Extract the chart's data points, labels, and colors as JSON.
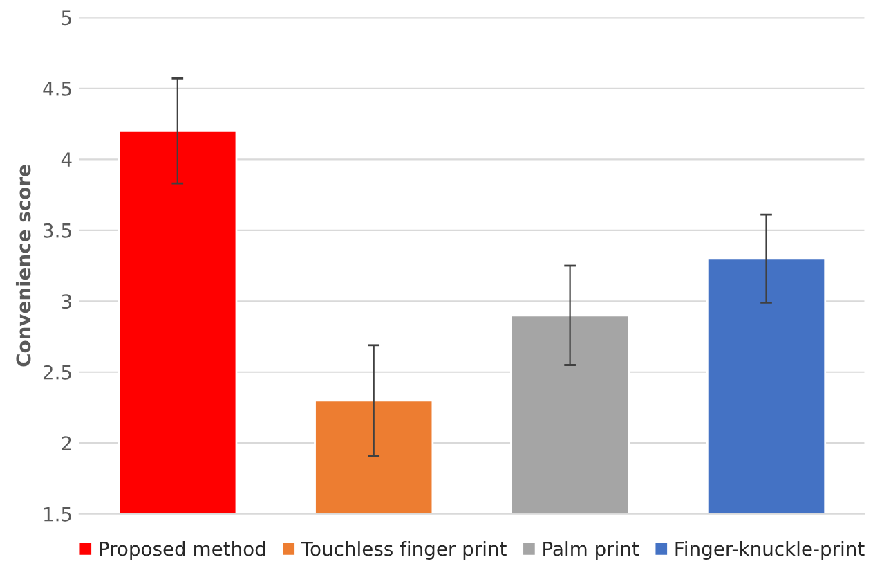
{
  "chart_data": {
    "type": "bar",
    "ylabel": "Convenience score",
    "categories": [
      null,
      null,
      null,
      null
    ],
    "series": [
      {
        "name": "Proposed method",
        "color": "#ff0000",
        "values": [
          4.2,
          null,
          null,
          null
        ],
        "errors": [
          0.37,
          null,
          null,
          null
        ]
      },
      {
        "name": "Touchless finger print",
        "color": "#ed7d31",
        "values": [
          null,
          2.3,
          null,
          null
        ],
        "errors": [
          null,
          0.39,
          null,
          null
        ]
      },
      {
        "name": "Palm print",
        "color": "#a5a5a5",
        "values": [
          null,
          null,
          2.9,
          null
        ],
        "errors": [
          null,
          null,
          0.35,
          null
        ]
      },
      {
        "name": "Finger-knuckle-print",
        "color": "#4472c4",
        "values": [
          null,
          null,
          null,
          3.3
        ],
        "errors": [
          null,
          null,
          null,
          0.31
        ]
      }
    ],
    "ylim": [
      1.5,
      5
    ],
    "yticks": [
      1.5,
      2,
      2.5,
      3,
      3.5,
      4,
      4.5,
      5
    ],
    "grid": "y",
    "legend": "bottom"
  }
}
